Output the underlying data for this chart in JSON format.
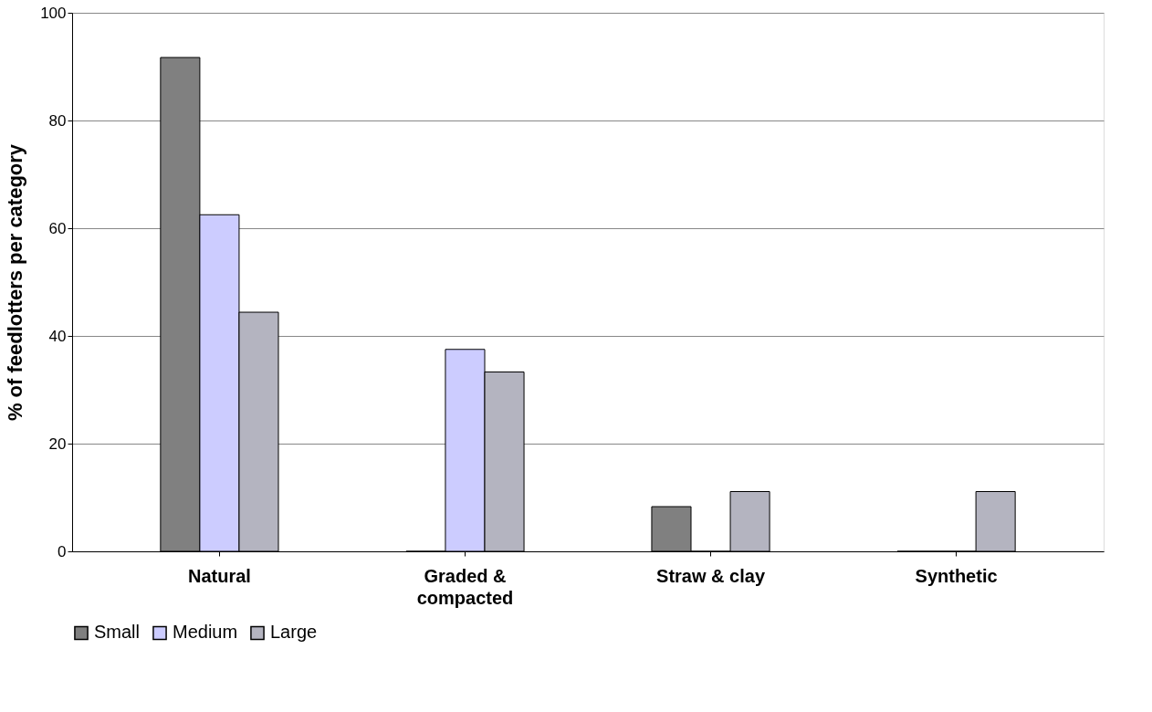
{
  "chart_data": {
    "type": "bar",
    "ylabel": "% of feedlotters per category",
    "categories": [
      "Natural",
      "Graded & compacted",
      "Straw & clay",
      "Synthetic"
    ],
    "series": [
      {
        "name": "Small",
        "color": "#808080",
        "values": [
          91.7,
          0,
          8.3,
          0
        ]
      },
      {
        "name": "Medium",
        "color": "#ccccff",
        "values": [
          62.5,
          37.5,
          0,
          0
        ]
      },
      {
        "name": "Large",
        "color": "#b4b4c0",
        "values": [
          44.4,
          33.3,
          11.1,
          11.1
        ]
      }
    ],
    "ylim": [
      0,
      100
    ],
    "yticks": [
      0,
      20,
      40,
      60,
      80,
      100
    ],
    "grid": "y",
    "legend": "bottom"
  }
}
